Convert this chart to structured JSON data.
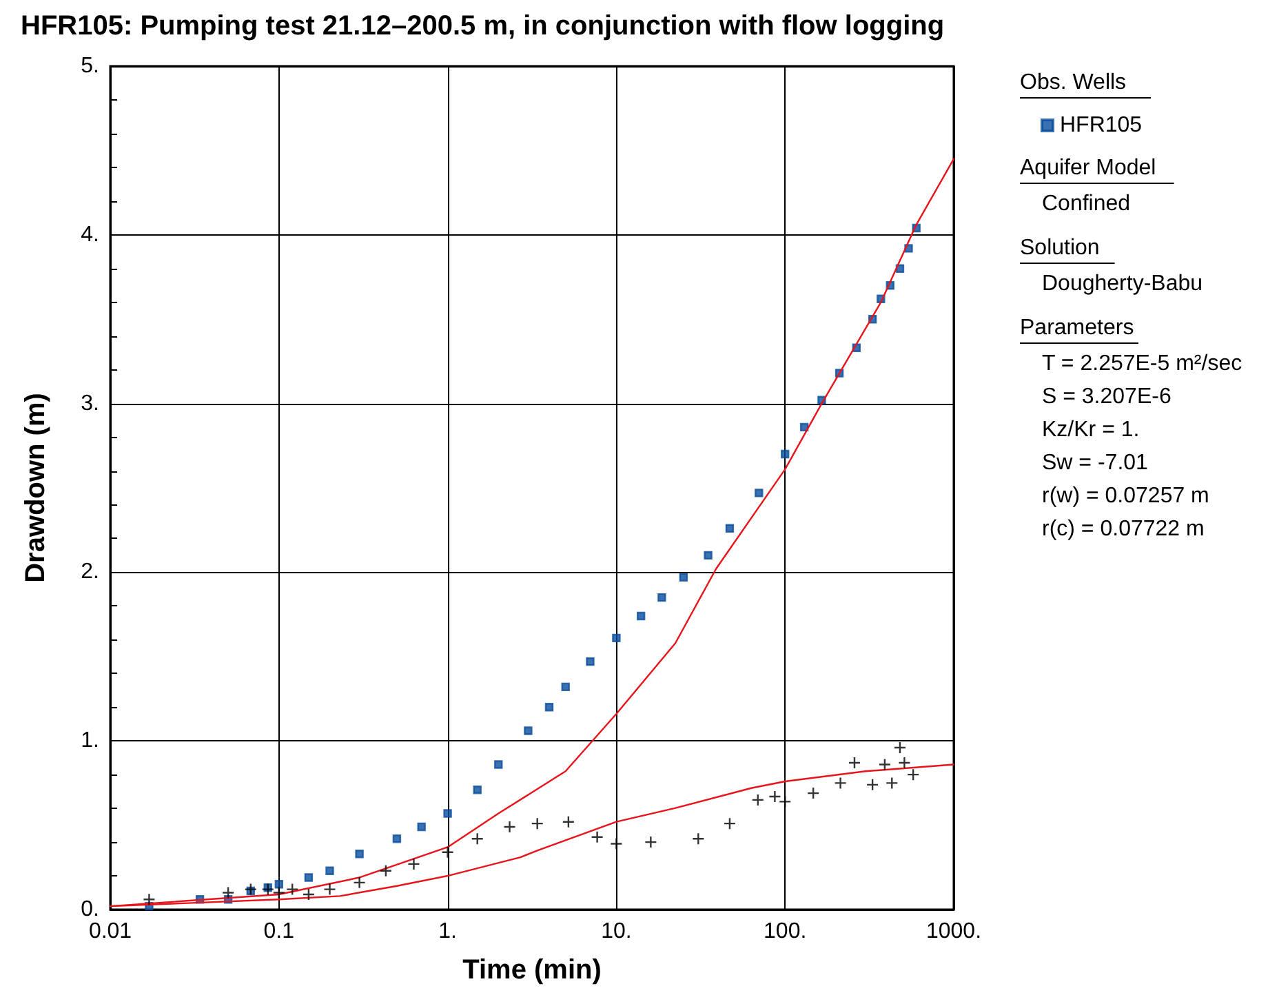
{
  "chart_data": {
    "type": "scatter",
    "title": "HFR105: Pumping test 21.12–200.5 m, in conjunction with flow logging",
    "xlabel": "Time (min)",
    "ylabel": "Drawdown (m)",
    "legend_title": "Obs. Wells",
    "legend": "right",
    "log": "x",
    "grid": true,
    "xlim": [
      0.01,
      1000
    ],
    "xticks": [
      0.01,
      0.1,
      {
        "value": 1,
        "label": "1."
      },
      {
        "value": 10,
        "label": "10."
      },
      {
        "value": 100,
        "label": "100."
      },
      {
        "value": 1000,
        "label": "1000."
      }
    ],
    "ylim": [
      0,
      5
    ],
    "yticks": [
      {
        "value": 0,
        "label": "0."
      },
      {
        "value": 1,
        "label": "1."
      },
      {
        "value": 2,
        "label": "2."
      },
      {
        "value": 3,
        "label": "3."
      },
      {
        "value": 4,
        "label": "4."
      },
      {
        "value": 5,
        "label": "5."
      }
    ],
    "series": [
      {
        "name": "HFR105",
        "marker": "square",
        "color": "#0a4d9c",
        "x": [
          0.017,
          0.034,
          0.05,
          0.068,
          0.086,
          0.1,
          0.15,
          0.2,
          0.3,
          0.5,
          0.7,
          1,
          1.5,
          2,
          3,
          4,
          5,
          7,
          10,
          14,
          18.6,
          25,
          35,
          47,
          70,
          100,
          130,
          165,
          210,
          265,
          330,
          370,
          420,
          480,
          540,
          600
        ],
        "values": [
          0.02,
          0.06,
          0.06,
          0.11,
          0.13,
          0.15,
          0.19,
          0.23,
          0.33,
          0.42,
          0.49,
          0.57,
          0.71,
          0.86,
          1.06,
          1.2,
          1.32,
          1.47,
          1.61,
          1.74,
          1.85,
          1.97,
          2.1,
          2.26,
          2.47,
          2.7,
          2.86,
          3.02,
          3.18,
          3.33,
          3.5,
          3.62,
          3.7,
          3.8,
          3.92,
          4.04
        ]
      },
      {
        "marker": "cross",
        "color": "#000000",
        "x": [
          0.017,
          0.05,
          0.068,
          0.086,
          0.1,
          0.12,
          0.15,
          0.2,
          0.3,
          0.43,
          0.63,
          1,
          1.5,
          2.33,
          3.4,
          5.2,
          7.7,
          10,
          16,
          30.6,
          47,
          69,
          87,
          100,
          147,
          213,
          258,
          330,
          390,
          430,
          480,
          510,
          575
        ],
        "values": [
          0.06,
          0.1,
          0.12,
          0.12,
          0.1,
          0.12,
          0.09,
          0.12,
          0.16,
          0.23,
          0.27,
          0.34,
          0.42,
          0.49,
          0.51,
          0.52,
          0.43,
          0.39,
          0.4,
          0.42,
          0.51,
          0.65,
          0.67,
          0.64,
          0.69,
          0.75,
          0.87,
          0.74,
          0.86,
          0.75,
          0.96,
          0.87,
          0.8
        ]
      },
      {
        "type": "line",
        "marker": "none",
        "color": "#e8141c",
        "x": [
          0.01,
          0.1,
          0.3,
          1,
          2,
          3,
          5,
          10,
          22.4,
          39,
          100,
          165,
          370,
          600,
          1000
        ],
        "values": [
          0.02,
          0.09,
          0.19,
          0.37,
          0.57,
          0.68,
          0.82,
          1.16,
          1.58,
          2.02,
          2.61,
          3.0,
          3.6,
          4.06,
          4.45
        ]
      },
      {
        "type": "line",
        "marker": "none",
        "color": "#e8141c",
        "x": [
          0.01,
          0.1,
          0.23,
          0.5,
          1,
          2.7,
          3.4,
          10,
          22,
          63,
          100,
          300,
          1000
        ],
        "values": [
          0.02,
          0.06,
          0.08,
          0.14,
          0.2,
          0.31,
          0.35,
          0.52,
          0.6,
          0.72,
          0.76,
          0.82,
          0.86
        ]
      }
    ],
    "annotations": [
      "Aquifer Model",
      "Confined",
      "Solution",
      "Dougherty-Babu",
      "Parameters",
      "T = 2.257E-5 m²/sec",
      "S = 3.207E-6",
      "Kz/Kr = 1.",
      "Sw = -7.01",
      "r(w) = 0.07257 m",
      "r(c) = 0.07722 m"
    ]
  }
}
